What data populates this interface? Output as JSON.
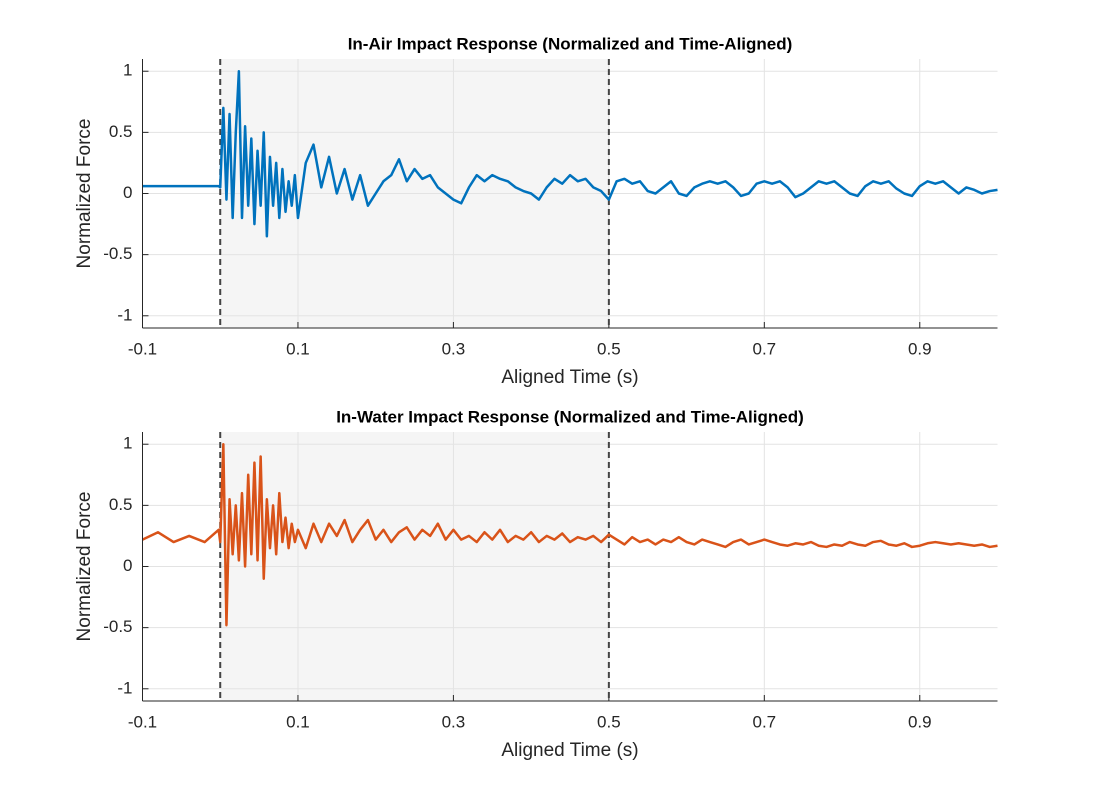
{
  "chart_data": [
    {
      "type": "line",
      "title": "In-Air Impact Response (Normalized and Time-Aligned)",
      "xlabel": "Aligned Time (s)",
      "ylabel": "Normalized Force",
      "xlim": [
        -0.1,
        1.0
      ],
      "ylim": [
        -1.1,
        1.1
      ],
      "xticks": [
        -0.1,
        0.1,
        0.3,
        0.5,
        0.7,
        0.9
      ],
      "yticks": [
        -1,
        -0.5,
        0,
        0.5,
        1
      ],
      "grid": true,
      "shaded_span": [
        0,
        0.5
      ],
      "vlines": [
        0,
        0.5
      ],
      "color": "#0072bd",
      "x": [
        -0.1,
        -0.08,
        -0.06,
        -0.04,
        -0.02,
        -0.002,
        0,
        0.004,
        0.008,
        0.012,
        0.016,
        0.02,
        0.024,
        0.028,
        0.032,
        0.036,
        0.04,
        0.044,
        0.048,
        0.052,
        0.056,
        0.06,
        0.064,
        0.068,
        0.072,
        0.076,
        0.08,
        0.084,
        0.088,
        0.092,
        0.096,
        0.1,
        0.11,
        0.12,
        0.13,
        0.14,
        0.15,
        0.16,
        0.17,
        0.18,
        0.19,
        0.2,
        0.21,
        0.22,
        0.23,
        0.24,
        0.25,
        0.26,
        0.27,
        0.28,
        0.29,
        0.3,
        0.31,
        0.32,
        0.33,
        0.34,
        0.35,
        0.36,
        0.37,
        0.38,
        0.39,
        0.4,
        0.41,
        0.42,
        0.43,
        0.44,
        0.45,
        0.46,
        0.47,
        0.48,
        0.49,
        0.5,
        0.51,
        0.52,
        0.53,
        0.54,
        0.55,
        0.56,
        0.57,
        0.58,
        0.59,
        0.6,
        0.61,
        0.62,
        0.63,
        0.64,
        0.65,
        0.66,
        0.67,
        0.68,
        0.69,
        0.7,
        0.71,
        0.72,
        0.73,
        0.74,
        0.75,
        0.76,
        0.77,
        0.78,
        0.79,
        0.8,
        0.81,
        0.82,
        0.83,
        0.84,
        0.85,
        0.86,
        0.87,
        0.88,
        0.89,
        0.9,
        0.91,
        0.92,
        0.93,
        0.94,
        0.95,
        0.96,
        0.97,
        0.98,
        0.99,
        1.0
      ],
      "values": [
        0.06,
        0.06,
        0.06,
        0.06,
        0.06,
        0.06,
        0.05,
        0.7,
        -0.05,
        0.65,
        -0.2,
        0.5,
        1.0,
        -0.2,
        0.55,
        -0.1,
        0.45,
        -0.25,
        0.35,
        -0.1,
        0.5,
        -0.35,
        0.3,
        -0.1,
        0.25,
        -0.2,
        0.2,
        -0.15,
        0.1,
        -0.1,
        0.15,
        -0.2,
        0.25,
        0.4,
        0.05,
        0.3,
        0.0,
        0.2,
        -0.05,
        0.15,
        -0.1,
        0.0,
        0.1,
        0.15,
        0.28,
        0.1,
        0.2,
        0.12,
        0.15,
        0.05,
        0.0,
        -0.05,
        -0.08,
        0.05,
        0.15,
        0.1,
        0.15,
        0.12,
        0.1,
        0.05,
        0.02,
        0.0,
        -0.05,
        0.05,
        0.12,
        0.08,
        0.15,
        0.1,
        0.12,
        0.05,
        0.02,
        -0.05,
        0.1,
        0.12,
        0.08,
        0.1,
        0.02,
        0.0,
        0.05,
        0.1,
        0.0,
        -0.02,
        0.05,
        0.08,
        0.1,
        0.08,
        0.1,
        0.05,
        -0.02,
        0.0,
        0.08,
        0.1,
        0.08,
        0.1,
        0.05,
        -0.03,
        0.0,
        0.05,
        0.1,
        0.08,
        0.1,
        0.05,
        0.0,
        -0.02,
        0.06,
        0.1,
        0.08,
        0.1,
        0.04,
        0.0,
        -0.02,
        0.06,
        0.1,
        0.08,
        0.1,
        0.05,
        0.0,
        0.05,
        0.03,
        0.0,
        0.02,
        0.03
      ]
    },
    {
      "type": "line",
      "title": "In-Water Impact Response (Normalized and Time-Aligned)",
      "xlabel": "Aligned Time (s)",
      "ylabel": "Normalized Force",
      "xlim": [
        -0.1,
        1.0
      ],
      "ylim": [
        -1.1,
        1.1
      ],
      "xticks": [
        -0.1,
        0.1,
        0.3,
        0.5,
        0.7,
        0.9
      ],
      "yticks": [
        -1,
        -0.5,
        0,
        0.5,
        1
      ],
      "grid": true,
      "shaded_span": [
        0,
        0.5
      ],
      "vlines": [
        0,
        0.5
      ],
      "color": "#d95319",
      "x": [
        -0.1,
        -0.08,
        -0.06,
        -0.04,
        -0.02,
        -0.002,
        0,
        0.004,
        0.008,
        0.012,
        0.016,
        0.02,
        0.024,
        0.028,
        0.032,
        0.036,
        0.04,
        0.044,
        0.048,
        0.052,
        0.056,
        0.06,
        0.064,
        0.068,
        0.072,
        0.076,
        0.08,
        0.084,
        0.088,
        0.092,
        0.096,
        0.1,
        0.11,
        0.12,
        0.13,
        0.14,
        0.15,
        0.16,
        0.17,
        0.18,
        0.19,
        0.2,
        0.21,
        0.22,
        0.23,
        0.24,
        0.25,
        0.26,
        0.27,
        0.28,
        0.29,
        0.3,
        0.31,
        0.32,
        0.33,
        0.34,
        0.35,
        0.36,
        0.37,
        0.38,
        0.39,
        0.4,
        0.41,
        0.42,
        0.43,
        0.44,
        0.45,
        0.46,
        0.47,
        0.48,
        0.49,
        0.5,
        0.51,
        0.52,
        0.53,
        0.54,
        0.55,
        0.56,
        0.57,
        0.58,
        0.59,
        0.6,
        0.61,
        0.62,
        0.63,
        0.64,
        0.65,
        0.66,
        0.67,
        0.68,
        0.69,
        0.7,
        0.71,
        0.72,
        0.73,
        0.74,
        0.75,
        0.76,
        0.77,
        0.78,
        0.79,
        0.8,
        0.81,
        0.82,
        0.83,
        0.84,
        0.85,
        0.86,
        0.87,
        0.88,
        0.89,
        0.9,
        0.91,
        0.92,
        0.93,
        0.94,
        0.95,
        0.96,
        0.97,
        0.98,
        0.99,
        1.0
      ],
      "values": [
        0.22,
        0.28,
        0.2,
        0.25,
        0.2,
        0.3,
        0.2,
        1.0,
        -0.48,
        0.55,
        0.1,
        0.5,
        0.05,
        0.6,
        0.0,
        0.75,
        0.1,
        0.85,
        0.05,
        0.9,
        -0.1,
        0.55,
        0.15,
        0.5,
        0.1,
        0.6,
        0.2,
        0.4,
        0.15,
        0.35,
        0.2,
        0.3,
        0.15,
        0.35,
        0.2,
        0.35,
        0.25,
        0.38,
        0.2,
        0.3,
        0.38,
        0.22,
        0.3,
        0.2,
        0.28,
        0.32,
        0.22,
        0.3,
        0.25,
        0.35,
        0.22,
        0.3,
        0.22,
        0.25,
        0.2,
        0.28,
        0.22,
        0.3,
        0.2,
        0.25,
        0.22,
        0.28,
        0.2,
        0.25,
        0.22,
        0.27,
        0.2,
        0.24,
        0.22,
        0.25,
        0.2,
        0.26,
        0.22,
        0.18,
        0.24,
        0.2,
        0.22,
        0.18,
        0.22,
        0.2,
        0.24,
        0.2,
        0.18,
        0.22,
        0.2,
        0.18,
        0.16,
        0.2,
        0.22,
        0.18,
        0.2,
        0.22,
        0.2,
        0.18,
        0.17,
        0.19,
        0.18,
        0.2,
        0.17,
        0.16,
        0.18,
        0.17,
        0.2,
        0.18,
        0.17,
        0.2,
        0.21,
        0.18,
        0.17,
        0.19,
        0.16,
        0.17,
        0.19,
        0.2,
        0.19,
        0.18,
        0.19,
        0.18,
        0.17,
        0.18,
        0.16,
        0.17
      ]
    }
  ]
}
